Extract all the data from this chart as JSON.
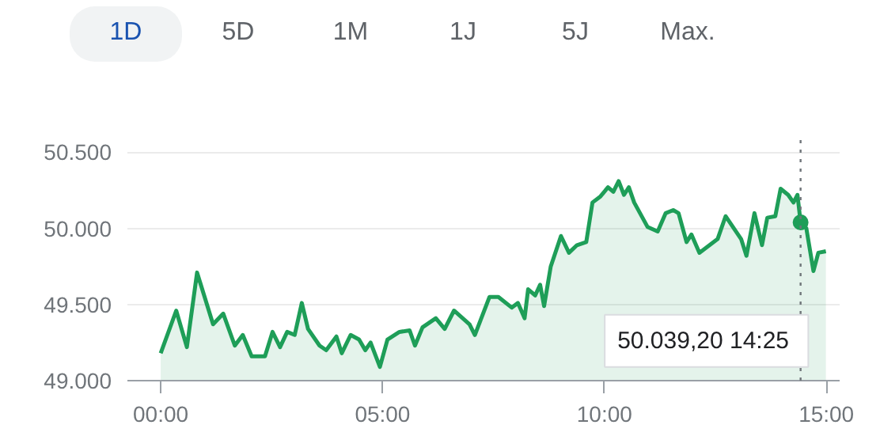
{
  "chart_data": {
    "type": "area",
    "color": "#1e9e58",
    "x": [
      0,
      0.35,
      0.59,
      0.82,
      1.18,
      1.41,
      1.67,
      1.85,
      2.05,
      2.35,
      2.52,
      2.69,
      2.85,
      3.02,
      3.18,
      3.32,
      3.58,
      3.73,
      3.96,
      4.08,
      4.28,
      4.47,
      4.61,
      4.73,
      4.94,
      5.11,
      5.38,
      5.61,
      5.73,
      5.9,
      6.2,
      6.4,
      6.61,
      6.96,
      7.08,
      7.41,
      7.61,
      7.91,
      8.05,
      8.2,
      8.28,
      8.44,
      8.55,
      8.64,
      8.79,
      9.02,
      9.2,
      9.38,
      9.59,
      9.73,
      9.91,
      10.08,
      10.2,
      10.32,
      10.44,
      10.55,
      10.67,
      10.97,
      11.2,
      11.38,
      11.55,
      11.67,
      11.85,
      11.96,
      12.14,
      12.55,
      12.73,
      13.08,
      13.2,
      13.38,
      13.55,
      13.67,
      13.85,
      13.97,
      14.14,
      14.26,
      14.35,
      14.42,
      14.55,
      14.71,
      14.82,
      14.99
    ],
    "values": [
      49180,
      49460,
      49220,
      49710,
      49370,
      49440,
      49230,
      49300,
      49160,
      49160,
      49320,
      49220,
      49320,
      49300,
      49510,
      49340,
      49230,
      49200,
      49290,
      49180,
      49300,
      49270,
      49200,
      49250,
      49090,
      49270,
      49320,
      49330,
      49230,
      49350,
      49410,
      49340,
      49460,
      49370,
      49300,
      49550,
      49550,
      49480,
      49510,
      49410,
      49600,
      49560,
      49630,
      49490,
      49750,
      49950,
      49840,
      49890,
      49910,
      50170,
      50210,
      50270,
      50240,
      50310,
      50220,
      50270,
      50170,
      50010,
      49980,
      50100,
      50120,
      50100,
      49910,
      49960,
      49840,
      49930,
      50080,
      49930,
      49820,
      50100,
      49890,
      50070,
      50080,
      50260,
      50220,
      50170,
      50220,
      50039.2,
      50000,
      49720,
      49840,
      49850
    ],
    "xlim": [
      -0.75,
      15.3
    ],
    "ylim": [
      49000,
      50580
    ],
    "xticks": [
      {
        "value": 0,
        "label": "00:00"
      },
      {
        "value": 5,
        "label": "05:00"
      },
      {
        "value": 10,
        "label": "10:00"
      },
      {
        "value": 15,
        "label": "15:00"
      }
    ],
    "yticks": [
      {
        "value": 49000,
        "label": "49.000"
      },
      {
        "value": 49500,
        "label": "49.500"
      },
      {
        "value": 50000,
        "label": "50.000"
      },
      {
        "value": 50500,
        "label": "50.500"
      }
    ],
    "grid": "y",
    "marker": "none",
    "line_style": "solid",
    "ref_lines": [
      {
        "axis": "x",
        "value": 14.42,
        "label": null,
        "color": "#70757a",
        "line_style": "dotted"
      }
    ],
    "annotations": [
      "1D",
      "5D",
      "1M",
      "1J",
      "5J",
      "Max.",
      "50.039,20  14:25"
    ]
  }
}
